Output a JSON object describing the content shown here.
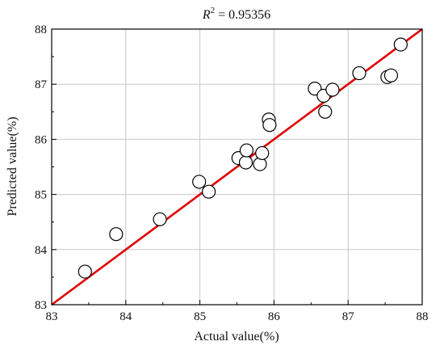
{
  "chart_data": {
    "type": "scatter",
    "title": {
      "r_symbol": "R",
      "r_superscript": "2",
      "value_text": " = 0.95356"
    },
    "xlabel": "Actual value(%)",
    "ylabel": "Predicted value(%)",
    "xlim": [
      83,
      88
    ],
    "ylim": [
      83,
      88
    ],
    "xticks": [
      83,
      84,
      85,
      86,
      87,
      88
    ],
    "yticks": [
      83,
      84,
      85,
      86,
      87,
      88
    ],
    "xtick_labels": [
      "83",
      "84",
      "85",
      "86",
      "87",
      "88"
    ],
    "ytick_labels": [
      "83",
      "84",
      "85",
      "86",
      "87",
      "88"
    ],
    "grid": true,
    "series": [
      {
        "type": "scatter",
        "x": [
          83.45,
          83.87,
          84.46,
          84.99,
          85.12,
          85.52,
          85.62,
          85.63,
          85.81,
          85.84,
          85.93,
          85.94,
          86.55,
          86.67,
          86.69,
          86.79,
          87.15,
          87.53,
          87.58,
          87.71
        ],
        "y": [
          83.6,
          84.28,
          84.55,
          85.23,
          85.05,
          85.66,
          85.58,
          85.8,
          85.55,
          85.75,
          86.36,
          86.26,
          86.92,
          86.79,
          86.5,
          86.9,
          87.2,
          87.13,
          87.16,
          87.72
        ]
      },
      {
        "type": "line",
        "x": [
          83,
          88
        ],
        "y": [
          83,
          88
        ]
      }
    ],
    "colors": {
      "fit_line": "#e00000",
      "marker_fill": "#ffffff",
      "marker_edge": "#000000",
      "grid": "#c8c8c8"
    }
  }
}
